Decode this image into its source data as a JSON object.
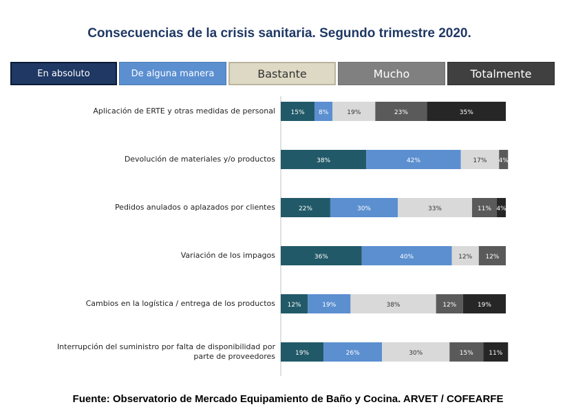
{
  "title": "Consecuencias de la crisis sanitaria. Segundo trimestre 2020.",
  "source": "Fuente: Observatorio de Mercado Equipamiento de Baño y Cocina. ARVET / COFEARFE",
  "legend": [
    {
      "label": "En absoluto",
      "color": "#1f3864",
      "text_color": "#ffffff"
    },
    {
      "label": "De alguna manera",
      "color": "#5b8fd0",
      "text_color": "#ffffff"
    },
    {
      "label": "Bastante",
      "color": "#ddd9c4",
      "text_color": "#333333"
    },
    {
      "label": "Mucho",
      "color": "#808080",
      "text_color": "#ffffff"
    },
    {
      "label": "Totalmente",
      "color": "#404040",
      "text_color": "#ffffff"
    }
  ],
  "chart_data": {
    "type": "bar",
    "orientation": "horizontal",
    "stacked": true,
    "categories": [
      "Aplicación de ERTE y otras medidas de personal",
      "Devolución de materiales y/o productos",
      "Pedidos anulados o aplazados por clientes",
      "Variación de los impagos",
      "Cambios en la logística / entrega de los productos",
      "Interrupción del suministro por falta de disponibilidad por parte de proveedores"
    ],
    "series": [
      {
        "name": "En absoluto",
        "color": "#215968",
        "values": [
          15,
          38,
          22,
          36,
          12,
          19
        ]
      },
      {
        "name": "De alguna manera",
        "color": "#5b8fd0",
        "values": [
          8,
          42,
          30,
          40,
          19,
          26
        ]
      },
      {
        "name": "Bastante",
        "color": "#d9d9d9",
        "values": [
          19,
          17,
          33,
          12,
          38,
          30
        ]
      },
      {
        "name": "Mucho",
        "color": "#5a5a5a",
        "values": [
          23,
          4,
          11,
          12,
          12,
          15
        ]
      },
      {
        "name": "Totalmente",
        "color": "#262626",
        "values": [
          35,
          0,
          4,
          0,
          19,
          11
        ]
      }
    ],
    "data_labels": [
      [
        "15%",
        "8%",
        "19%",
        "23%",
        "35%"
      ],
      [
        "38%",
        "42%",
        "17%",
        "4%",
        ""
      ],
      [
        "22%",
        "30%",
        "33%",
        "11%",
        "4%"
      ],
      [
        "36%",
        "40%",
        "12%",
        "12%",
        ""
      ],
      [
        "12%",
        "19%",
        "38%",
        "12%",
        "19%"
      ],
      [
        "19%",
        "26%",
        "30%",
        "15%",
        "11%"
      ]
    ],
    "label_colors": [
      "#ffffff",
      "#ffffff",
      "#333333",
      "#ffffff",
      "#ffffff"
    ],
    "xlim": [
      0,
      100
    ]
  }
}
